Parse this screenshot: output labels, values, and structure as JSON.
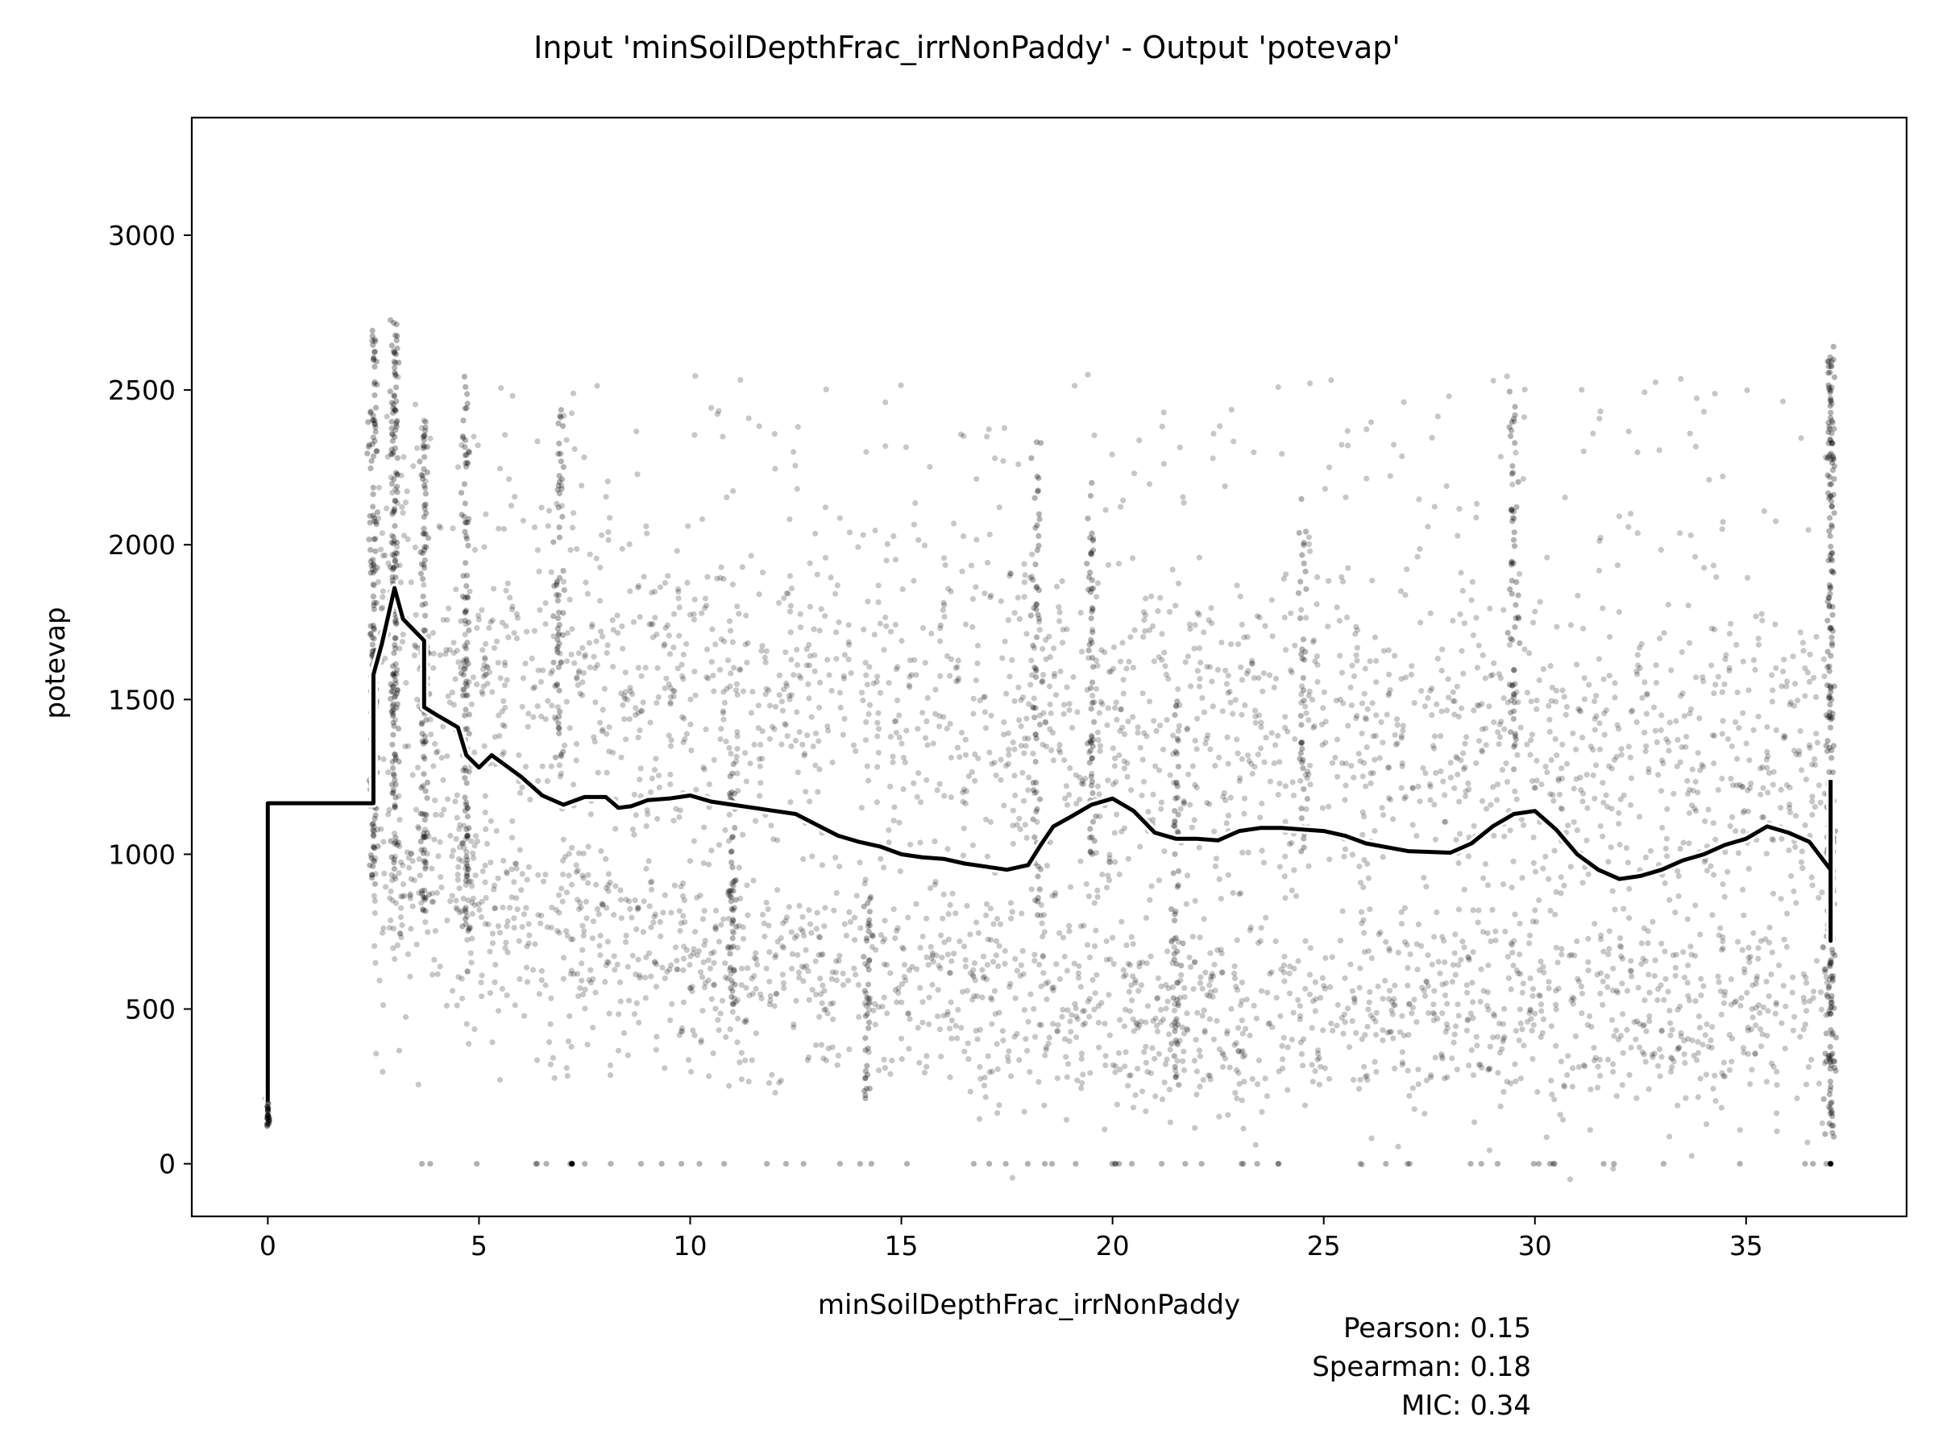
{
  "chart_data": {
    "type": "scatter",
    "title": "Input 'minSoilDepthFrac_irrNonPaddy' - Output 'potevap'",
    "xlabel": "minSoilDepthFrac_irrNonPaddy",
    "ylabel": "potevap",
    "xlim": [
      -1.8,
      38.8
    ],
    "ylim": [
      -170,
      3380
    ],
    "xticks": [
      0,
      5,
      10,
      15,
      20,
      25,
      30,
      35
    ],
    "yticks": [
      0,
      500,
      1000,
      1500,
      2000,
      2500,
      3000
    ],
    "grid": false,
    "legend": "none",
    "colors": {
      "points": "#000000",
      "line": "#000000",
      "line_outline": "#ffffff"
    },
    "stats": [
      {
        "label": "Pearson: 0.15"
      },
      {
        "label": "Spearman: 0.18"
      },
      {
        "label": "MIC: 0.34"
      }
    ],
    "series": [
      {
        "type": "line",
        "x": [
          0,
          0,
          2.5,
          2.5,
          2.7,
          3.0,
          3.2,
          3.7,
          3.7,
          4.0,
          4.5,
          4.7,
          5.0,
          5.3,
          5.6,
          6.0,
          6.5,
          7.0,
          7.5,
          8.0,
          8.3,
          8.6,
          9.0,
          9.5,
          10.0,
          10.5,
          11.0,
          11.5,
          12.0,
          12.5,
          13.0,
          13.5,
          14.0,
          14.5,
          15.0,
          15.5,
          16.0,
          16.5,
          17.0,
          17.5,
          18.0,
          18.3,
          18.6,
          19.0,
          19.5,
          20.0,
          20.5,
          21.0,
          21.5,
          22.0,
          22.5,
          23.0,
          23.5,
          24.0,
          24.5,
          25.0,
          25.5,
          26.0,
          27.0,
          28.0,
          28.5,
          29.0,
          29.5,
          30.0,
          30.5,
          31.0,
          31.5,
          32.0,
          32.5,
          33.0,
          33.5,
          34.0,
          34.5,
          35.0,
          35.5,
          36.0,
          36.5,
          37.0,
          37.0,
          37.0
        ],
        "y": [
          200,
          1165,
          1165,
          1580,
          1680,
          1860,
          1760,
          1690,
          1475,
          1450,
          1410,
          1320,
          1280,
          1320,
          1290,
          1250,
          1190,
          1160,
          1185,
          1185,
          1150,
          1155,
          1175,
          1180,
          1190,
          1170,
          1160,
          1150,
          1140,
          1130,
          1095,
          1060,
          1040,
          1025,
          1000,
          990,
          985,
          970,
          960,
          950,
          965,
          1030,
          1090,
          1120,
          1160,
          1180,
          1140,
          1070,
          1050,
          1050,
          1045,
          1075,
          1085,
          1085,
          1080,
          1075,
          1060,
          1035,
          1010,
          1005,
          1035,
          1090,
          1130,
          1140,
          1080,
          1000,
          950,
          920,
          930,
          950,
          980,
          1000,
          1030,
          1050,
          1090,
          1070,
          1040,
          950,
          720,
          1240
        ]
      }
    ]
  }
}
